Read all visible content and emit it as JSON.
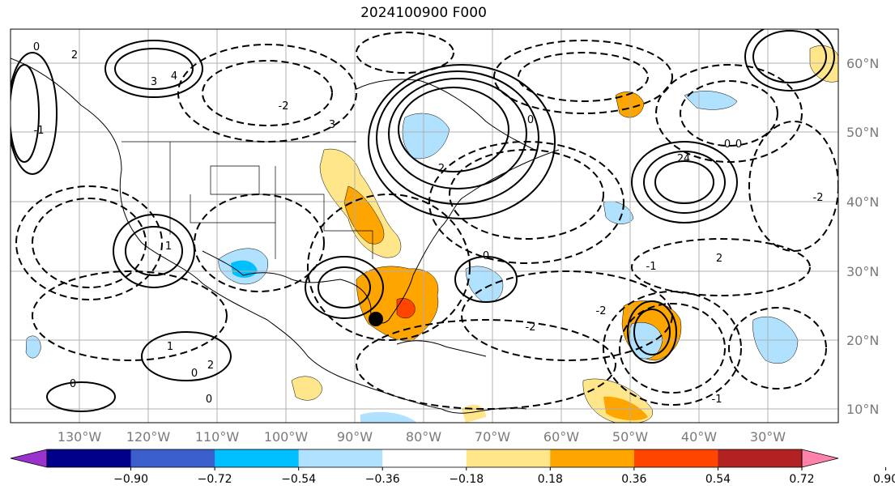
{
  "title": "2024100900 F000",
  "lon_labels": [
    "130°W",
    "120°W",
    "110°W",
    "100°W",
    "90°W",
    "80°W",
    "70°W",
    "60°W",
    "50°W",
    "40°W",
    "30°W"
  ],
  "lat_labels": [
    "60°N",
    "50°N",
    "40°N",
    "30°N",
    "20°N",
    "10°N"
  ],
  "colorbar": {
    "ticks": [
      "−0.90",
      "−0.72",
      "−0.54",
      "−0.36",
      "−0.18",
      "0.18",
      "0.36",
      "0.54",
      "0.72",
      "0.90"
    ],
    "colors": [
      "#9a32cd",
      "#00008b",
      "#3a5fcd",
      "#00bfff",
      "#b0e2ff",
      "#ffffff",
      "#ffe68a",
      "#ffa500",
      "#ff4500",
      "#b22222",
      "#ff82ab"
    ]
  },
  "contour_labels": [
    "0",
    "2",
    "3",
    "4",
    "-1",
    "-2",
    "3",
    "2",
    "0",
    "0",
    "2",
    "-1",
    "2",
    "4",
    "0",
    "-2",
    "-2",
    "1",
    "0",
    "1",
    "2",
    "-1",
    "0",
    "-2",
    "0",
    "0"
  ],
  "colors": {
    "frame": "#000000",
    "grid": "#b0b0b0",
    "contour": "#000000"
  },
  "marker": {
    "label": "storm-center"
  }
}
